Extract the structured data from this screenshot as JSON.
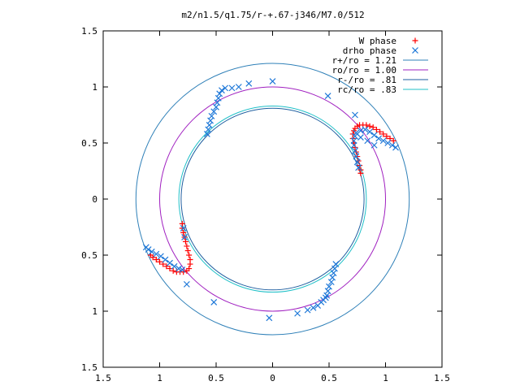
{
  "chart_data": {
    "type": "scatter",
    "title": "m2/n1.5/q1.75/r-+.67-j346/M7.0/512",
    "xlabel": "",
    "ylabel": "",
    "xlim": [
      -1.5,
      1.5
    ],
    "ylim": [
      -1.5,
      1.5
    ],
    "grid": false,
    "legend_position": "top-right",
    "x_tick_labels": [
      "1.5",
      "1",
      "0.5",
      "0",
      "0.5",
      "1",
      "1.5"
    ],
    "y_tick_labels": [
      "1.5",
      "1",
      "0.5",
      "0",
      "0.5",
      "1",
      "1.5"
    ],
    "x_ticks": [
      -1.5,
      -1,
      -0.5,
      0,
      0.5,
      1,
      1.5
    ],
    "y_ticks": [
      1.5,
      1,
      0.5,
      0,
      -0.5,
      -1,
      -1.5
    ],
    "circles": [
      {
        "name": "r+/ro = 1.21",
        "radius": 1.21,
        "color": "#2f80b8"
      },
      {
        "name": "ro/ro = 1.00",
        "radius": 1.0,
        "color": "#a020c0"
      },
      {
        "name": "r-/ro = .81",
        "radius": 0.81,
        "color": "#1f5fa0"
      },
      {
        "name": "rc/ro = .83",
        "radius": 0.83,
        "color": "#20c0c8"
      }
    ],
    "series": [
      {
        "name": "W phase",
        "marker": "+",
        "color": "#ff0000",
        "points": [
          [
            0.78,
            0.23
          ],
          [
            0.78,
            0.26
          ],
          [
            0.77,
            0.3
          ],
          [
            0.76,
            0.34
          ],
          [
            0.75,
            0.38
          ],
          [
            0.74,
            0.42
          ],
          [
            0.73,
            0.46
          ],
          [
            0.72,
            0.5
          ],
          [
            0.71,
            0.54
          ],
          [
            0.71,
            0.58
          ],
          [
            0.72,
            0.61
          ],
          [
            0.73,
            0.63
          ],
          [
            0.75,
            0.65
          ],
          [
            0.77,
            0.66
          ],
          [
            0.8,
            0.66
          ],
          [
            0.83,
            0.66
          ],
          [
            0.86,
            0.65
          ],
          [
            0.89,
            0.64
          ],
          [
            0.92,
            0.62
          ],
          [
            0.95,
            0.6
          ],
          [
            0.98,
            0.58
          ],
          [
            1.01,
            0.56
          ],
          [
            1.04,
            0.54
          ],
          [
            1.07,
            0.52
          ],
          [
            -0.8,
            -0.22
          ],
          [
            -0.8,
            -0.26
          ],
          [
            -0.79,
            -0.3
          ],
          [
            -0.78,
            -0.34
          ],
          [
            -0.77,
            -0.38
          ],
          [
            -0.76,
            -0.42
          ],
          [
            -0.75,
            -0.46
          ],
          [
            -0.74,
            -0.5
          ],
          [
            -0.73,
            -0.54
          ],
          [
            -0.73,
            -0.58
          ],
          [
            -0.74,
            -0.62
          ],
          [
            -0.76,
            -0.64
          ],
          [
            -0.79,
            -0.65
          ],
          [
            -0.82,
            -0.65
          ],
          [
            -0.85,
            -0.65
          ],
          [
            -0.88,
            -0.64
          ],
          [
            -0.91,
            -0.62
          ],
          [
            -0.94,
            -0.6
          ],
          [
            -0.97,
            -0.58
          ],
          [
            -1.0,
            -0.56
          ],
          [
            -1.03,
            -0.54
          ],
          [
            -1.06,
            -0.52
          ],
          [
            -1.08,
            -0.5
          ]
        ]
      },
      {
        "name": "drho phase",
        "marker": "x",
        "color": "#1e78d8",
        "points": [
          [
            -0.58,
            0.58
          ],
          [
            -0.57,
            0.62
          ],
          [
            -0.56,
            0.66
          ],
          [
            -0.55,
            0.7
          ],
          [
            -0.54,
            0.74
          ],
          [
            -0.52,
            0.78
          ],
          [
            -0.5,
            0.82
          ],
          [
            -0.49,
            0.86
          ],
          [
            -0.48,
            0.9
          ],
          [
            -0.47,
            0.94
          ],
          [
            -0.45,
            0.97
          ],
          [
            -0.42,
            0.99
          ],
          [
            -0.36,
            0.99
          ],
          [
            -0.3,
            1.0
          ],
          [
            -0.21,
            1.03
          ],
          [
            0.0,
            1.05
          ],
          [
            0.49,
            0.92
          ],
          [
            0.73,
            0.75
          ],
          [
            0.76,
            0.28
          ],
          [
            0.75,
            0.33
          ],
          [
            0.74,
            0.38
          ],
          [
            0.73,
            0.43
          ],
          [
            0.72,
            0.48
          ],
          [
            0.72,
            0.52
          ],
          [
            0.73,
            0.56
          ],
          [
            0.74,
            0.59
          ],
          [
            0.78,
            0.61
          ],
          [
            0.82,
            0.62
          ],
          [
            0.86,
            0.6
          ],
          [
            0.9,
            0.57
          ],
          [
            0.94,
            0.54
          ],
          [
            0.98,
            0.52
          ],
          [
            1.02,
            0.5
          ],
          [
            1.06,
            0.48
          ],
          [
            1.09,
            0.46
          ],
          [
            0.78,
            0.55
          ],
          [
            0.84,
            0.52
          ],
          [
            0.9,
            0.48
          ],
          [
            -1.12,
            -0.43
          ],
          [
            -1.1,
            -0.45
          ],
          [
            -1.07,
            -0.47
          ],
          [
            -1.03,
            -0.49
          ],
          [
            -0.99,
            -0.51
          ],
          [
            -0.95,
            -0.54
          ],
          [
            -0.91,
            -0.57
          ],
          [
            -0.87,
            -0.6
          ],
          [
            -0.83,
            -0.62
          ],
          [
            -0.8,
            -0.63
          ],
          [
            -0.78,
            -0.34
          ],
          [
            -0.79,
            -0.26
          ],
          [
            -0.76,
            -0.76
          ],
          [
            -0.52,
            -0.92
          ],
          [
            0.56,
            -0.58
          ],
          [
            0.55,
            -0.62
          ],
          [
            0.54,
            -0.66
          ],
          [
            0.53,
            -0.7
          ],
          [
            0.52,
            -0.74
          ],
          [
            0.5,
            -0.78
          ],
          [
            0.49,
            -0.82
          ],
          [
            0.48,
            -0.86
          ],
          [
            0.47,
            -0.88
          ],
          [
            0.45,
            -0.9
          ],
          [
            0.43,
            -0.92
          ],
          [
            0.4,
            -0.95
          ],
          [
            0.36,
            -0.97
          ],
          [
            0.31,
            -0.99
          ],
          [
            0.22,
            -1.02
          ],
          [
            -0.03,
            -1.06
          ]
        ]
      }
    ]
  }
}
